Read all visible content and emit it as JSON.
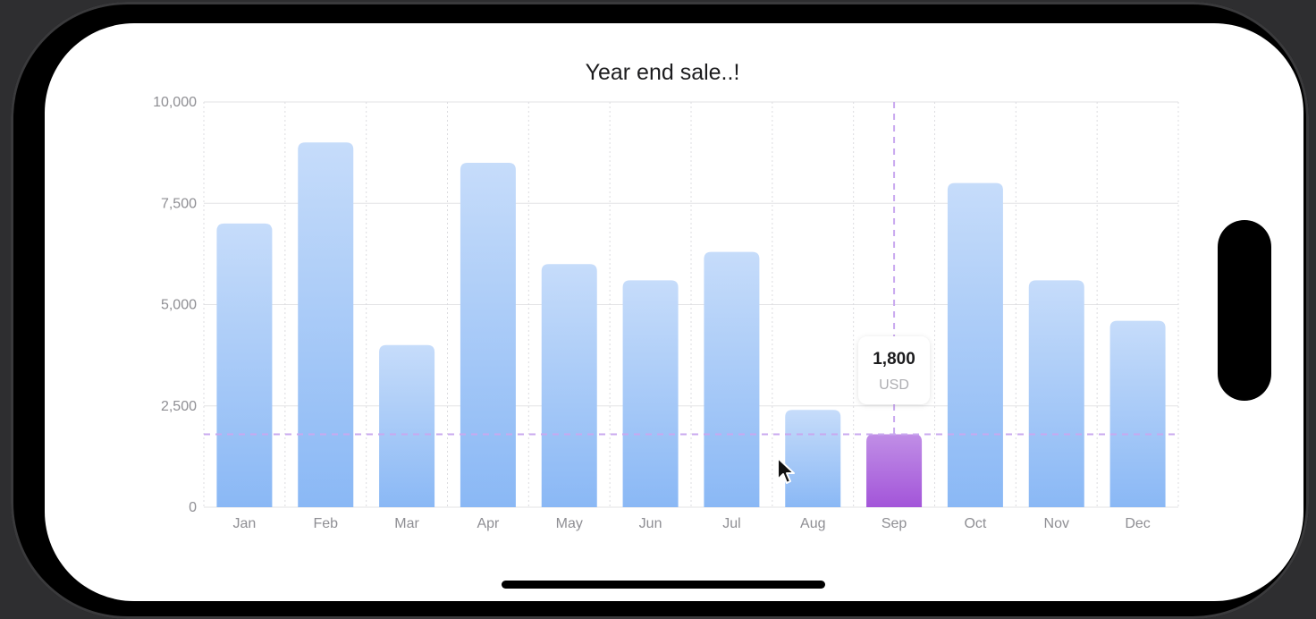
{
  "chart_data": {
    "type": "bar",
    "title": "Year end sale..!",
    "categories": [
      "Jan",
      "Feb",
      "Mar",
      "Apr",
      "May",
      "Jun",
      "Jul",
      "Aug",
      "Sep",
      "Oct",
      "Nov",
      "Dec"
    ],
    "values": [
      7000,
      9000,
      4000,
      8500,
      6000,
      5600,
      6300,
      2400,
      1800,
      8000,
      5600,
      4600
    ],
    "ylim": [
      0,
      10000
    ],
    "yticks": [
      0,
      2500,
      5000,
      7500,
      10000
    ],
    "ytick_labels": [
      "0",
      "2,500",
      "5,000",
      "7,500",
      "10,000"
    ],
    "grid": true,
    "selected_index": 8,
    "selected_value": 1800,
    "tooltip": {
      "value": "1,800",
      "unit": "USD"
    },
    "colors": {
      "bar_top": "#c6dcfa",
      "bar_bottom": "#8ab8f5",
      "selected_top": "#c08ee6",
      "selected_bottom": "#a355d9",
      "rule": "#c9a8ef"
    }
  }
}
